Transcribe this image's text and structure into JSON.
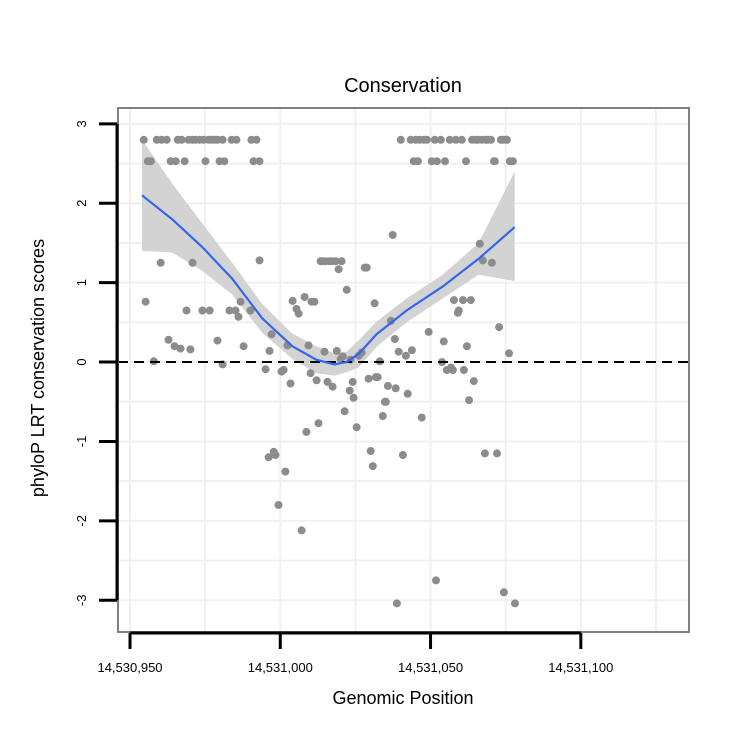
{
  "chart_data": {
    "type": "scatter",
    "title": "Conservation",
    "xlabel": "Genomic Position",
    "ylabel": "phyloP LRT conservation scores",
    "xlim": [
      14530946,
      14531136
    ],
    "ylim": [
      -3.4,
      3.2
    ],
    "x_ticks": [
      14530950,
      14531000,
      14531050,
      14531100
    ],
    "x_tick_labels": [
      "14,530,950",
      "14,531,000",
      "14,531,050",
      "14,531,100"
    ],
    "y_ticks": [
      -3,
      -2,
      -1,
      0,
      1,
      2,
      3
    ],
    "y_tick_labels": [
      "-3",
      "-2",
      "-1",
      "0",
      "1",
      "2",
      "3"
    ],
    "reference_line": {
      "y": 0,
      "style": "dashed"
    },
    "colors": {
      "points": "#8c8c8c",
      "smooth_line": "#3366ee",
      "confidence_band": "#d3d3d3",
      "panel_border": "#808080",
      "grid": "#f0f0f0"
    },
    "points": [
      [
        14530954.6,
        2.8
      ],
      [
        14530955.9,
        2.53
      ],
      [
        14530956.9,
        2.53
      ],
      [
        14530958.9,
        2.8
      ],
      [
        14530960.5,
        2.8
      ],
      [
        14530962.2,
        2.8
      ],
      [
        14530963.5,
        2.53
      ],
      [
        14530965.2,
        2.53
      ],
      [
        14530965.9,
        2.8
      ],
      [
        14530967.2,
        2.8
      ],
      [
        14530968.2,
        2.53
      ],
      [
        14530969.5,
        2.8
      ],
      [
        14530970.8,
        2.8
      ],
      [
        14530971.8,
        2.8
      ],
      [
        14530973.1,
        2.8
      ],
      [
        14530974.5,
        2.8
      ],
      [
        14530975.1,
        2.53
      ],
      [
        14530976.1,
        2.8
      ],
      [
        14530977.1,
        2.8
      ],
      [
        14530978.1,
        2.8
      ],
      [
        14530979.1,
        2.8
      ],
      [
        14530979.8,
        2.53
      ],
      [
        14530980.8,
        2.8
      ],
      [
        14530981.4,
        2.53
      ],
      [
        14530983.8,
        2.8
      ],
      [
        14530985.4,
        2.8
      ],
      [
        14530990.4,
        2.8
      ],
      [
        14530991.1,
        2.53
      ],
      [
        14530992.1,
        2.8
      ],
      [
        14530993.1,
        2.53
      ],
      [
        14530955.2,
        0.76
      ],
      [
        14530957.9,
        0.01
      ],
      [
        14530960.2,
        1.25
      ],
      [
        14530962.8,
        0.28
      ],
      [
        14530964.8,
        0.2
      ],
      [
        14530966.8,
        0.17
      ],
      [
        14530968.8,
        0.65
      ],
      [
        14530970.1,
        0.16
      ],
      [
        14530970.8,
        1.25
      ],
      [
        14530974.1,
        0.65
      ],
      [
        14530976.5,
        0.65
      ],
      [
        14530979.1,
        0.27
      ],
      [
        14530980.8,
        -0.03
      ],
      [
        14530983.1,
        0.65
      ],
      [
        14530985.1,
        0.65
      ],
      [
        14530986.1,
        0.57
      ],
      [
        14530986.8,
        0.76
      ],
      [
        14530987.8,
        0.2
      ],
      [
        14530990.1,
        0.65
      ],
      [
        14530993.1,
        1.28
      ],
      [
        14530995.1,
        -0.09
      ],
      [
        14530996.1,
        -1.2
      ],
      [
        14530996.4,
        0.14
      ],
      [
        14530997.1,
        0.35
      ],
      [
        14530997.8,
        -1.13
      ],
      [
        14530998.4,
        -1.17
      ],
      [
        14530999.4,
        -1.8
      ],
      [
        14531000.4,
        -0.12
      ],
      [
        14531001.1,
        -0.1
      ],
      [
        14531001.7,
        -1.38
      ],
      [
        14531002.4,
        0.21
      ],
      [
        14531003.4,
        -0.27
      ],
      [
        14531004.1,
        0.77
      ],
      [
        14531005.4,
        0.67
      ],
      [
        14531006.1,
        0.61
      ],
      [
        14531007.1,
        -2.12
      ],
      [
        14531008.1,
        0.82
      ],
      [
        14531008.7,
        -0.88
      ],
      [
        14531009.4,
        0.21
      ],
      [
        14531010.1,
        -0.14
      ],
      [
        14531010.4,
        0.76
      ],
      [
        14531011.4,
        0.76
      ],
      [
        14531012.1,
        -0.23
      ],
      [
        14531012.7,
        -0.77
      ],
      [
        14531013.4,
        1.27
      ],
      [
        14531014.1,
        1.27
      ],
      [
        14531014.7,
        0.13
      ],
      [
        14531015.1,
        1.27
      ],
      [
        14531015.7,
        -0.25
      ],
      [
        14531016.4,
        1.27
      ],
      [
        14531017.1,
        1.27
      ],
      [
        14531017.4,
        -0.31
      ],
      [
        14531018.4,
        1.27
      ],
      [
        14531018.8,
        0.14
      ],
      [
        14531019.4,
        1.17
      ],
      [
        14531020.1,
        0.04
      ],
      [
        14531020.4,
        1.27
      ],
      [
        14531020.8,
        0.07
      ],
      [
        14531021.4,
        -0.62
      ],
      [
        14531022.1,
        0.91
      ],
      [
        14531023.1,
        -0.36
      ],
      [
        14531023.4,
        0.03
      ],
      [
        14531024.1,
        -0.25
      ],
      [
        14531024.4,
        -0.45
      ],
      [
        14531025.4,
        -0.82
      ],
      [
        14531026.1,
        0.08
      ],
      [
        14531027.1,
        0.12
      ],
      [
        14531028.1,
        1.19
      ],
      [
        14531028.8,
        1.19
      ],
      [
        14531029.4,
        -0.21
      ],
      [
        14531030.1,
        -1.12
      ],
      [
        14531030.8,
        -1.31
      ],
      [
        14531031.4,
        0.74
      ],
      [
        14531031.8,
        -0.19
      ],
      [
        14531032.4,
        -0.19
      ],
      [
        14531033.1,
        0.01
      ],
      [
        14531034.1,
        -0.68
      ],
      [
        14531034.8,
        -0.5
      ],
      [
        14531035.1,
        -0.5
      ],
      [
        14531035.8,
        -0.3
      ],
      [
        14531036.8,
        0.52
      ],
      [
        14531037.4,
        1.6
      ],
      [
        14531038.1,
        0.29
      ],
      [
        14531038.4,
        -0.33
      ],
      [
        14531039.4,
        0.13
      ],
      [
        14531040.1,
        2.8
      ],
      [
        14531040.8,
        -1.17
      ],
      [
        14531041.8,
        0.08
      ],
      [
        14531042.4,
        -0.4
      ],
      [
        14531043.4,
        2.8
      ],
      [
        14531043.8,
        0.15
      ],
      [
        14531044.4,
        2.53
      ],
      [
        14531045.1,
        2.8
      ],
      [
        14531045.8,
        2.53
      ],
      [
        14531046.4,
        2.8
      ],
      [
        14531047.1,
        -0.7
      ],
      [
        14531047.8,
        2.8
      ],
      [
        14531048.8,
        2.8
      ],
      [
        14531049.4,
        0.38
      ],
      [
        14531050.4,
        2.53
      ],
      [
        14531051.4,
        2.8
      ],
      [
        14531051.8,
        -2.75
      ],
      [
        14531052.1,
        2.53
      ],
      [
        14531053.4,
        2.8
      ],
      [
        14531053.8,
        0.0
      ],
      [
        14531054.4,
        0.26
      ],
      [
        14531054.8,
        2.53
      ],
      [
        14531055.4,
        -0.1
      ],
      [
        14531056.4,
        2.8
      ],
      [
        14531056.8,
        -0.07
      ],
      [
        14531057.4,
        -0.1
      ],
      [
        14531057.8,
        0.78
      ],
      [
        14531058.4,
        2.8
      ],
      [
        14531059.1,
        0.62
      ],
      [
        14531059.4,
        0.65
      ],
      [
        14531060.4,
        2.8
      ],
      [
        14531060.8,
        0.78
      ],
      [
        14531061.1,
        -0.1
      ],
      [
        14531061.8,
        2.53
      ],
      [
        14531062.1,
        0.2
      ],
      [
        14531062.8,
        -0.48
      ],
      [
        14531063.4,
        0.78
      ],
      [
        14531063.8,
        2.8
      ],
      [
        14531064.4,
        -0.24
      ],
      [
        14531065.1,
        2.8
      ],
      [
        14531065.8,
        2.8
      ],
      [
        14531066.4,
        1.49
      ],
      [
        14531067.1,
        2.8
      ],
      [
        14531067.4,
        1.28
      ],
      [
        14531068.1,
        -1.15
      ],
      [
        14531068.4,
        2.8
      ],
      [
        14531069.1,
        2.8
      ],
      [
        14531070.1,
        2.8
      ],
      [
        14531070.4,
        1.25
      ],
      [
        14531071.1,
        2.53
      ],
      [
        14531071.4,
        2.53
      ],
      [
        14531072.1,
        -1.15
      ],
      [
        14531072.8,
        0.44
      ],
      [
        14531073.4,
        2.8
      ],
      [
        14531074.1,
        2.8
      ],
      [
        14531074.4,
        -2.9
      ],
      [
        14531075.1,
        2.8
      ],
      [
        14531075.4,
        2.8
      ],
      [
        14531076.1,
        0.11
      ],
      [
        14531076.4,
        2.53
      ],
      [
        14531077.4,
        2.53
      ],
      [
        14531078.1,
        -3.04
      ],
      [
        14531038.8,
        -3.04
      ]
    ],
    "smooth_curve": {
      "x": [
        14530954,
        14530964,
        14530974,
        14530984,
        14530994,
        14531004,
        14531012,
        14531018,
        14531022,
        14531026,
        14531032,
        14531042,
        14531054,
        14531066,
        14531078
      ],
      "y": [
        2.1,
        1.8,
        1.45,
        1.05,
        0.55,
        0.2,
        0.03,
        -0.03,
        0.0,
        0.1,
        0.35,
        0.65,
        0.95,
        1.3,
        1.7
      ],
      "lower": [
        1.4,
        1.38,
        1.15,
        0.85,
        0.37,
        0.04,
        -0.14,
        -0.17,
        -0.13,
        -0.07,
        0.19,
        0.5,
        0.8,
        1.1,
        1.02
      ],
      "upper": [
        2.8,
        2.25,
        1.75,
        1.25,
        0.73,
        0.36,
        0.2,
        0.11,
        0.13,
        0.27,
        0.51,
        0.8,
        1.1,
        1.5,
        2.4
      ]
    }
  }
}
